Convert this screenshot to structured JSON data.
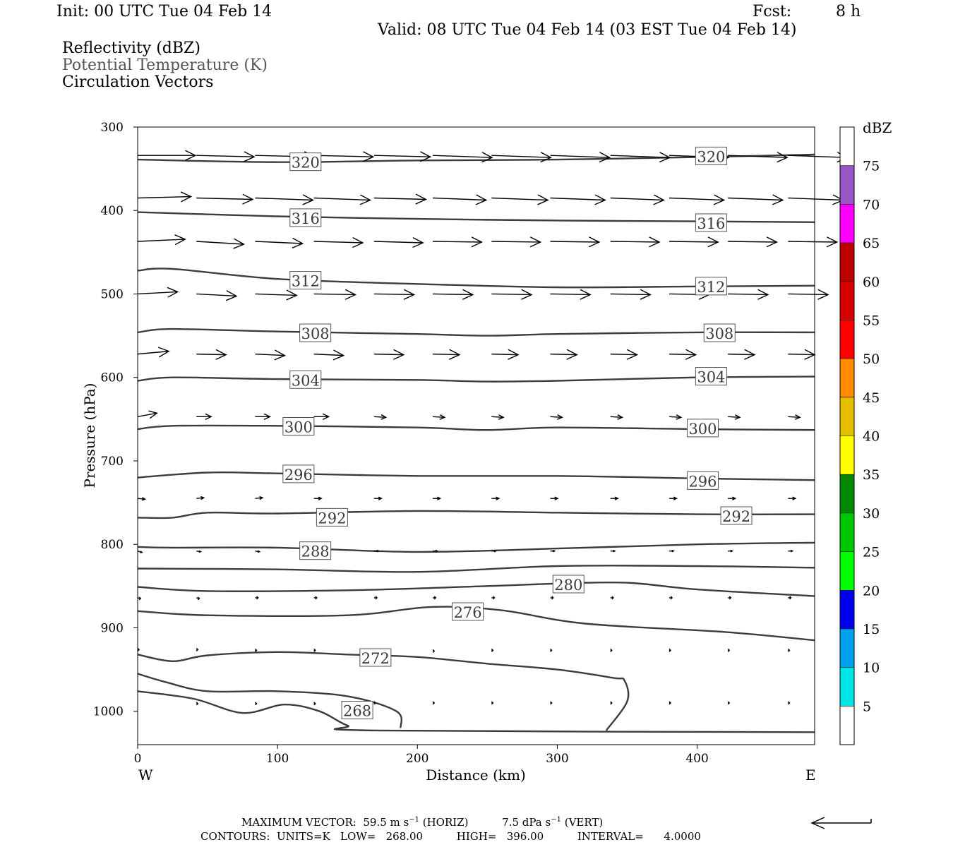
{
  "header": {
    "init": "Init: 00 UTC Tue 04 Feb 14",
    "fcst_label": "Fcst:",
    "fcst_value": "8 h",
    "valid": "Valid: 08 UTC Tue 04 Feb 14 (03 EST Tue 04 Feb 14)"
  },
  "fields": {
    "reflectivity": "Reflectivity (dBZ)",
    "theta": "Potential Temperature (K)",
    "circulation": "Circulation Vectors"
  },
  "footer": {
    "max_vector": "MAXIMUM VECTOR:  59.5 m s",
    "max_vector_exp": "−1",
    "max_vector_mid": " (HORIZ)          7.5 dPa s",
    "max_vector_exp2": "−1",
    "max_vector_end": " (VERT)",
    "contours": "CONTOURS:  UNITS=K   LOW=   268.00          HIGH=   396.00          INTERVAL=      4.0000"
  },
  "chart_data": {
    "type": "line",
    "xlabel": "Distance (km)",
    "ylabel": "Pressure (hPa)",
    "xlim": [
      0,
      484
    ],
    "ylim": [
      1040,
      300
    ],
    "x_ticks": [
      "0",
      "100",
      "200",
      "300",
      "400"
    ],
    "x_tick_values": [
      0,
      100,
      200,
      300,
      400
    ],
    "y_ticks": [
      "300",
      "400",
      "500",
      "600",
      "700",
      "800",
      "900",
      "1000"
    ],
    "y_tick_values": [
      300,
      400,
      500,
      600,
      700,
      800,
      900,
      1000
    ],
    "direction_west": "W",
    "direction_east": "E",
    "colorbar": {
      "unit": "dBZ",
      "levels": [
        "5",
        "10",
        "15",
        "20",
        "25",
        "30",
        "35",
        "40",
        "45",
        "50",
        "55",
        "60",
        "65",
        "70",
        "75"
      ],
      "level_values": [
        5,
        10,
        15,
        20,
        25,
        30,
        35,
        40,
        45,
        50,
        55,
        60,
        65,
        70,
        75
      ],
      "colors": [
        "#ffffff",
        "#00e5e5",
        "#00a0f0",
        "#0000f0",
        "#00ff00",
        "#00c800",
        "#008800",
        "#ffff00",
        "#e5bf00",
        "#ff8c00",
        "#ff0000",
        "#d70000",
        "#bf0000",
        "#ff00ff",
        "#9855c8",
        "#ffffff"
      ]
    },
    "isentropes": [
      {
        "level": "320",
        "points": [
          [
            0,
            339
          ],
          [
            100,
            342
          ],
          [
            200,
            340
          ],
          [
            300,
            339
          ],
          [
            400,
            336
          ],
          [
            484,
            333
          ]
        ],
        "labels": [
          [
            120,
            342
          ],
          [
            410,
            335
          ]
        ]
      },
      {
        "level": "316",
        "points": [
          [
            0,
            402
          ],
          [
            100,
            407
          ],
          [
            200,
            410
          ],
          [
            300,
            412
          ],
          [
            400,
            413
          ],
          [
            484,
            414
          ]
        ],
        "labels": [
          [
            120,
            409
          ],
          [
            410,
            415
          ]
        ]
      },
      {
        "level": "312",
        "points": [
          [
            0,
            472
          ],
          [
            25,
            470
          ],
          [
            100,
            482
          ],
          [
            200,
            488
          ],
          [
            300,
            492
          ],
          [
            400,
            491
          ],
          [
            484,
            490
          ]
        ],
        "labels": [
          [
            120,
            484
          ],
          [
            410,
            491
          ]
        ]
      },
      {
        "level": "308",
        "points": [
          [
            0,
            546
          ],
          [
            25,
            542
          ],
          [
            100,
            545
          ],
          [
            200,
            548
          ],
          [
            250,
            550
          ],
          [
            300,
            548
          ],
          [
            400,
            546
          ],
          [
            484,
            546
          ]
        ],
        "labels": [
          [
            127,
            547
          ],
          [
            416,
            547
          ]
        ]
      },
      {
        "level": "304",
        "points": [
          [
            0,
            604
          ],
          [
            25,
            600
          ],
          [
            100,
            602
          ],
          [
            200,
            603
          ],
          [
            250,
            605
          ],
          [
            300,
            604
          ],
          [
            400,
            600
          ],
          [
            484,
            599
          ]
        ],
        "labels": [
          [
            120,
            603
          ],
          [
            410,
            599
          ]
        ]
      },
      {
        "level": "300",
        "points": [
          [
            0,
            662
          ],
          [
            25,
            658
          ],
          [
            100,
            658
          ],
          [
            200,
            660
          ],
          [
            250,
            663
          ],
          [
            300,
            660
          ],
          [
            400,
            662
          ],
          [
            484,
            663
          ]
        ],
        "labels": [
          [
            115,
            659
          ],
          [
            404,
            661
          ]
        ]
      },
      {
        "level": "296",
        "points": [
          [
            0,
            720
          ],
          [
            50,
            714
          ],
          [
            100,
            715
          ],
          [
            200,
            718
          ],
          [
            300,
            718
          ],
          [
            400,
            721
          ],
          [
            484,
            723
          ]
        ],
        "labels": [
          [
            115,
            716
          ],
          [
            404,
            724
          ]
        ]
      },
      {
        "level": "292",
        "points": [
          [
            0,
            768
          ],
          [
            25,
            768
          ],
          [
            50,
            762
          ],
          [
            100,
            763
          ],
          [
            200,
            760
          ],
          [
            300,
            762
          ],
          [
            400,
            764
          ],
          [
            484,
            764
          ]
        ],
        "labels": [
          [
            139,
            768
          ],
          [
            428,
            766
          ]
        ]
      },
      {
        "level": "288",
        "points": [
          [
            0,
            803
          ],
          [
            25,
            804
          ],
          [
            100,
            804
          ],
          [
            200,
            809
          ],
          [
            300,
            805
          ],
          [
            400,
            800
          ],
          [
            484,
            798
          ]
        ],
        "labels": [
          [
            127,
            808
          ]
        ]
      },
      {
        "level": "284",
        "points": [
          [
            0,
            829
          ],
          [
            100,
            830
          ],
          [
            200,
            833
          ],
          [
            300,
            826
          ],
          [
            400,
            826
          ],
          [
            484,
            828
          ]
        ],
        "labels": []
      },
      {
        "level": "280",
        "points": [
          [
            0,
            851
          ],
          [
            50,
            856
          ],
          [
            150,
            855
          ],
          [
            250,
            850
          ],
          [
            300,
            847
          ],
          [
            350,
            846
          ],
          [
            400,
            854
          ],
          [
            484,
            862
          ]
        ],
        "labels": [
          [
            308,
            848
          ]
        ]
      },
      {
        "level": "276",
        "points": [
          [
            0,
            880
          ],
          [
            50,
            885
          ],
          [
            150,
            885
          ],
          [
            210,
            875
          ],
          [
            260,
            879
          ],
          [
            320,
            895
          ],
          [
            420,
            905
          ],
          [
            484,
            915
          ]
        ],
        "labels": [
          [
            236,
            881
          ]
        ]
      },
      {
        "level": "272",
        "points": [
          [
            0,
            932
          ],
          [
            25,
            940
          ],
          [
            50,
            933
          ],
          [
            100,
            929
          ],
          [
            150,
            932
          ],
          [
            200,
            935
          ],
          [
            250,
            943
          ],
          [
            300,
            950
          ],
          [
            340,
            960
          ],
          [
            348,
            963
          ],
          [
            350,
            988
          ],
          [
            335,
            1023
          ]
        ],
        "labels": [
          [
            170,
            936
          ]
        ]
      },
      {
        "level": "268",
        "points": [
          [
            0,
            955
          ],
          [
            20,
            965
          ],
          [
            50,
            976
          ],
          [
            100,
            976
          ],
          [
            150,
            982
          ],
          [
            185,
            1000
          ],
          [
            188,
            1020
          ]
        ],
        "labels": [
          [
            157,
            999
          ]
        ]
      },
      {
        "level": "",
        "points": [
          [
            0,
            976
          ],
          [
            40,
            985
          ],
          [
            75,
            1002
          ],
          [
            105,
            992
          ],
          [
            130,
            1000
          ],
          [
            150,
            1017
          ],
          [
            170,
            1023
          ],
          [
            484,
            1025
          ]
        ],
        "labels": []
      }
    ],
    "vector_rows": [
      {
        "p": 334,
        "x": [
          0,
          42,
          84,
          126,
          169,
          211,
          253,
          295,
          338,
          380,
          422,
          465
        ],
        "u": [
          39,
          39,
          40,
          40,
          38,
          40,
          40,
          40,
          40,
          40,
          40,
          40
        ],
        "dp": [
          0,
          2,
          2,
          2,
          2,
          3,
          3,
          3,
          3,
          3,
          3,
          3
        ]
      },
      {
        "p": 385,
        "x": [
          0,
          42,
          84,
          126,
          169,
          211,
          253,
          295,
          338,
          380,
          422,
          465
        ],
        "u": [
          36,
          38,
          39,
          38,
          35,
          36,
          38,
          37,
          36,
          37,
          37,
          37
        ],
        "dp": [
          -2,
          2,
          3,
          3,
          2,
          3,
          3,
          3,
          3,
          3,
          3,
          3
        ]
      },
      {
        "p": 437,
        "x": [
          0,
          42,
          84,
          126,
          169,
          211,
          253,
          295,
          338,
          380,
          422,
          465
        ],
        "u": [
          32,
          32,
          32,
          33,
          33,
          33,
          33,
          33,
          33,
          33,
          33,
          33
        ],
        "dp": [
          -3,
          4,
          3,
          2,
          2,
          1,
          1,
          1,
          1,
          1,
          1,
          1
        ]
      },
      {
        "p": 500,
        "x": [
          0,
          42,
          84,
          126,
          169,
          211,
          253,
          295,
          338,
          380,
          422,
          465
        ],
        "u": [
          27,
          27,
          28,
          28,
          27,
          27,
          27,
          27,
          27,
          27,
          27,
          27
        ],
        "dp": [
          -3,
          3,
          2,
          1,
          1,
          1,
          1,
          1,
          1,
          1,
          1,
          1
        ]
      },
      {
        "p": 572,
        "x": [
          0,
          42,
          84,
          126,
          169,
          211,
          253,
          295,
          338,
          380,
          422,
          465
        ],
        "u": [
          21,
          20,
          20,
          20,
          20,
          18,
          18,
          18,
          18,
          18,
          18,
          18
        ],
        "dp": [
          -4,
          1,
          2,
          2,
          1,
          1,
          1,
          1,
          1,
          1,
          1,
          1
        ]
      },
      {
        "p": 647,
        "x": [
          0,
          42,
          84,
          126,
          169,
          211,
          253,
          295,
          338,
          380,
          422,
          465
        ],
        "u": [
          13,
          10,
          10,
          10,
          8,
          8,
          8,
          8,
          8,
          8,
          8,
          8
        ],
        "dp": [
          -5,
          0,
          0,
          0,
          1,
          1,
          1,
          1,
          1,
          1,
          1,
          1
        ]
      },
      {
        "p": 745,
        "x": [
          0,
          42,
          84,
          126,
          169,
          211,
          253,
          295,
          338,
          380,
          422,
          465
        ],
        "u": [
          5,
          5,
          5,
          5,
          5,
          5,
          5,
          5,
          5,
          5,
          5,
          5
        ],
        "dp": [
          1,
          -1,
          -1,
          0,
          0,
          0,
          0,
          0,
          0,
          0,
          0,
          0
        ]
      },
      {
        "p": 808,
        "x": [
          0,
          42,
          84,
          126,
          169,
          211,
          253,
          295,
          338,
          380,
          422,
          465
        ],
        "u": [
          3,
          3,
          3,
          3,
          3,
          3,
          3,
          3,
          3,
          3,
          3,
          3
        ],
        "dp": [
          2,
          1,
          1,
          0,
          0,
          0,
          0,
          0,
          0,
          0,
          0,
          0
        ]
      },
      {
        "p": 864,
        "x": [
          0,
          42,
          84,
          126,
          169,
          211,
          253,
          295,
          338,
          380,
          422,
          465
        ],
        "u": [
          2,
          2,
          2,
          2,
          2,
          2,
          2,
          2,
          2,
          2,
          2,
          2
        ],
        "dp": [
          1,
          1,
          0,
          0,
          0,
          0,
          0,
          0,
          0,
          0,
          0,
          0
        ]
      },
      {
        "p": 927,
        "x": [
          0,
          42,
          84,
          126,
          169,
          211,
          253,
          295,
          338,
          380,
          422,
          465
        ],
        "u": [
          1,
          1,
          1,
          1,
          1,
          1,
          1,
          1,
          1,
          1,
          1,
          1
        ],
        "dp": [
          -1,
          -1,
          0,
          0,
          0,
          1,
          0,
          0,
          0,
          0,
          0,
          0
        ]
      },
      {
        "p": 990,
        "x": [
          42,
          84,
          126,
          169,
          211,
          253,
          295,
          338,
          380,
          422,
          465
        ],
        "u": [
          1,
          1,
          1,
          1,
          1,
          1,
          1,
          1,
          1,
          1,
          1
        ],
        "dp": [
          1,
          1,
          1,
          0,
          0,
          0,
          0,
          0,
          0,
          0,
          0
        ]
      }
    ]
  }
}
